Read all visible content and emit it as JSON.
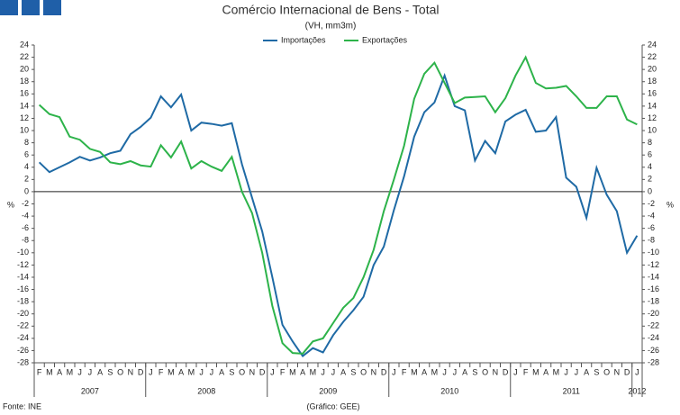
{
  "chart_data": {
    "type": "line",
    "title": "Comércio Internacional de Bens - Total",
    "subtitle": "(VH, mm3m)",
    "y_label": "%",
    "source": "Fonte: INE",
    "credit": "(Gráfico: GEE)",
    "categories": [
      "F",
      "M",
      "A",
      "M",
      "J",
      "J",
      "A",
      "S",
      "O",
      "N",
      "D",
      "J",
      "F",
      "M",
      "A",
      "M",
      "J",
      "J",
      "A",
      "S",
      "O",
      "N",
      "D",
      "J",
      "F",
      "M",
      "A",
      "M",
      "J",
      "J",
      "A",
      "S",
      "O",
      "N",
      "D",
      "J",
      "F",
      "M",
      "A",
      "M",
      "J",
      "J",
      "A",
      "S",
      "O",
      "N",
      "D",
      "J",
      "F",
      "M",
      "A",
      "M",
      "J",
      "J",
      "A",
      "S",
      "O",
      "N",
      "D",
      "J"
    ],
    "years": [
      "2007",
      "2008",
      "2009",
      "2010",
      "2011",
      "2012"
    ],
    "series": [
      {
        "name": "Importações",
        "color": "#1f6aa5",
        "values": [
          4.8,
          3.2,
          4.0,
          4.8,
          5.7,
          5.1,
          5.6,
          6.3,
          6.7,
          9.4,
          10.6,
          12.1,
          15.6,
          13.8,
          15.9,
          10.0,
          11.3,
          11.1,
          10.8,
          11.2,
          4.5,
          -1.0,
          -6.5,
          -14.0,
          -21.8,
          -24.5,
          -26.9,
          -25.6,
          -26.3,
          -23.5,
          -21.3,
          -19.4,
          -17.2,
          -12.0,
          -9.0,
          -3.0,
          2.5,
          9.0,
          13.0,
          14.6,
          19.0,
          14.0,
          13.3,
          5.1,
          8.3,
          6.3,
          11.5,
          12.6,
          13.4,
          9.8,
          10.0,
          12.2,
          2.3,
          0.8,
          -4.3,
          3.9,
          -0.5,
          -3.2,
          -10.0,
          -7.2
        ]
      },
      {
        "name": "Exportações",
        "color": "#2db34a",
        "values": [
          14.2,
          12.7,
          12.2,
          9.0,
          8.5,
          7.0,
          6.5,
          4.8,
          4.5,
          5.0,
          4.3,
          4.1,
          7.6,
          5.6,
          8.2,
          3.8,
          5.0,
          4.1,
          3.4,
          5.7,
          0.0,
          -3.5,
          -10.0,
          -18.7,
          -24.8,
          -26.4,
          -26.5,
          -24.5,
          -24.0,
          -21.5,
          -19.0,
          -17.4,
          -14.0,
          -9.5,
          -3.2,
          2.0,
          7.5,
          15.2,
          19.3,
          21.1,
          17.8,
          14.5,
          15.4,
          15.5,
          15.6,
          13.0,
          15.3,
          19.0,
          22.0,
          17.8,
          16.9,
          17.0,
          17.3,
          15.6,
          13.7,
          13.7,
          15.6,
          15.6,
          11.8,
          11.0
        ]
      }
    ],
    "ylim": [
      -28,
      24
    ],
    "yticks": [
      -28,
      -26,
      -24,
      -22,
      -20,
      -18,
      -16,
      -14,
      -12,
      -10,
      -8,
      -6,
      -4,
      -2,
      0,
      2,
      4,
      6,
      8,
      10,
      12,
      14,
      16,
      18,
      20,
      22,
      24
    ],
    "grid": false
  }
}
